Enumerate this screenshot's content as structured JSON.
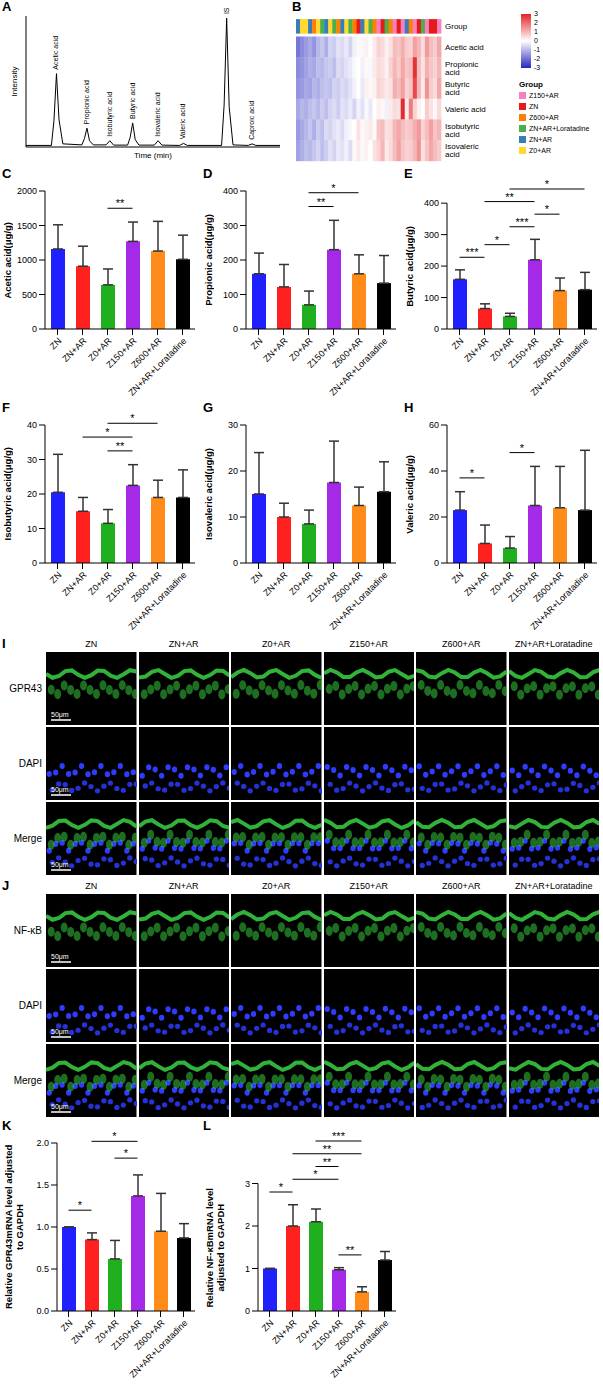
{
  "chart_data": [
    {
      "panel": "A",
      "type": "line",
      "xlabel": "Time (min)",
      "ylabel": "Intensity",
      "x": [
        0,
        1.0,
        1.1,
        1.2,
        1.3,
        1.45,
        2.2,
        2.3,
        2.4,
        2.5,
        2.65,
        3.15,
        3.3,
        3.45,
        4.0,
        4.1,
        4.2,
        4.3,
        4.45,
        5.05,
        5.2,
        5.35,
        6.05,
        6.2,
        6.35,
        7.7,
        7.8,
        7.9,
        8.0,
        8.15,
        8.75,
        8.9,
        9.05,
        10
      ],
      "values": [
        15000,
        15000,
        250000,
        700000,
        260000,
        30000,
        20000,
        80000,
        180000,
        60000,
        20000,
        20000,
        60000,
        18000,
        18000,
        90000,
        230000,
        70000,
        18000,
        18000,
        60000,
        18000,
        15000,
        35000,
        15000,
        15000,
        400000,
        1230000,
        380000,
        20000,
        15000,
        30000,
        15000,
        15000
      ],
      "color": "#000000",
      "xlim": [
        0,
        10
      ],
      "xticks": [
        0,
        2,
        4,
        6,
        8,
        10
      ],
      "ylim": [
        0,
        1250000
      ],
      "yticks": [
        0,
        250000,
        500000,
        750000,
        1000000,
        1250000
      ],
      "tick_labels": false,
      "annotations": [
        {
          "text": "Acetic acid",
          "x": 1.2,
          "y": 700000
        },
        {
          "text": "Propionic acid",
          "x": 2.4,
          "y": 180000
        },
        {
          "text": "Isobutyric acid",
          "x": 3.3,
          "y": 60000
        },
        {
          "text": "Butyric acid",
          "x": 4.2,
          "y": 230000
        },
        {
          "text": "Isovaleric acid",
          "x": 5.2,
          "y": 60000
        },
        {
          "text": "Valeric acid",
          "x": 6.2,
          "y": 35000
        },
        {
          "text": "IS",
          "x": 7.9,
          "y": 1230000
        },
        {
          "text": "Caproic acid",
          "x": 8.9,
          "y": 30000
        }
      ]
    },
    {
      "panel": "B",
      "type": "heatmap",
      "legend": "right",
      "rows": [
        "Acetic acid",
        "Propionic acid",
        "Butyric acid",
        "Valeric acid",
        "Isobutyric acid",
        "Isovaleric acid"
      ],
      "column_groups": [
        "ZN+AR",
        "Z0+AR",
        "Z0+AR",
        "ZN+AR",
        "Z600+AR",
        "Z0+AR",
        "ZN+AR+Loratadine",
        "ZN+AR",
        "Z0+AR",
        "ZN+AR+Loratadine",
        "Z600+AR",
        "ZN+AR",
        "Z0+AR",
        "ZN+AR+Loratadine",
        "Z600+AR",
        "ZN",
        "ZN+AR",
        "Z0+AR",
        "ZN+AR+Loratadine",
        "Z600+AR",
        "Z150+AR",
        "ZN",
        "ZN+AR+Loratadine",
        "Z600+AR",
        "Z150+AR",
        "ZN",
        "Z150+AR",
        "ZN+AR",
        "Z600+AR",
        "Z150+AR",
        "ZN",
        "ZN+AR+Loratadine",
        "Z150+AR",
        "ZN",
        "ZN",
        "Z150+AR"
      ],
      "cells": [
        [
          -1.9,
          -1.6,
          -1.4,
          -1.2,
          -1.5,
          -1.0,
          -0.8,
          -1.1,
          -0.6,
          -0.7,
          -0.4,
          -0.5,
          -0.3,
          -0.6,
          -0.2,
          0.1,
          -0.1,
          0.2,
          0.0,
          0.3,
          0.6,
          0.5,
          0.2,
          0.4,
          0.9,
          0.8,
          1.1,
          0.7,
          0.6,
          1.3,
          1.0,
          0.5,
          1.4,
          0.9,
          0.7,
          1.2
        ],
        [
          -1.6,
          -1.5,
          -1.3,
          -1.1,
          -1.2,
          -0.9,
          -1.0,
          -0.8,
          -0.7,
          -0.9,
          -0.5,
          -0.6,
          -0.4,
          -0.3,
          -0.1,
          0.0,
          -0.2,
          0.1,
          -0.1,
          0.3,
          0.5,
          0.4,
          0.2,
          0.6,
          1.0,
          0.7,
          1.2,
          0.8,
          0.9,
          2.8,
          0.9,
          0.4,
          1.1,
          0.8,
          0.6,
          1.0
        ],
        [
          -1.5,
          -1.4,
          -1.2,
          -1.3,
          -1.0,
          -1.1,
          -0.9,
          -0.8,
          -0.9,
          -0.6,
          -0.7,
          -0.5,
          -0.6,
          -0.4,
          -0.2,
          0.0,
          -0.3,
          0.2,
          0.1,
          0.2,
          0.6,
          0.5,
          0.3,
          0.4,
          1.1,
          0.9,
          1.3,
          0.6,
          0.8,
          2.5,
          1.0,
          0.3,
          1.5,
          0.7,
          0.5,
          1.2
        ],
        [
          -1.2,
          -1.0,
          -1.1,
          -0.9,
          -0.8,
          -1.0,
          -0.7,
          -0.9,
          -0.6,
          -0.5,
          -0.7,
          -0.4,
          -0.5,
          -0.3,
          -0.6,
          -0.2,
          -0.4,
          -0.1,
          -0.3,
          0.0,
          0.2,
          0.1,
          -0.2,
          0.3,
          0.5,
          0.4,
          2.9,
          0.3,
          1.8,
          0.6,
          0.2,
          0.0,
          0.7,
          0.4,
          0.1,
          0.5
        ],
        [
          -1.4,
          -1.2,
          -1.0,
          -0.8,
          -1.1,
          -0.7,
          -0.9,
          -0.5,
          -0.6,
          -0.4,
          -0.3,
          -0.5,
          -0.2,
          -0.1,
          0.0,
          0.4,
          0.1,
          0.2,
          0.3,
          0.1,
          0.8,
          0.9,
          0.4,
          0.5,
          1.0,
          1.2,
          0.9,
          0.7,
          0.8,
          1.1,
          1.4,
          0.6,
          0.9,
          1.3,
          0.8,
          1.0
        ],
        [
          -1.3,
          -1.1,
          -0.9,
          -1.0,
          -0.8,
          -0.6,
          -0.9,
          -0.7,
          -0.4,
          -0.6,
          -0.3,
          -0.4,
          -0.2,
          -0.5,
          0.1,
          0.3,
          -0.1,
          0.2,
          0.0,
          0.4,
          0.6,
          1.0,
          0.3,
          0.5,
          0.9,
          1.3,
          0.8,
          0.6,
          0.7,
          1.0,
          1.5,
          0.4,
          0.8,
          1.2,
          0.9,
          0.7
        ]
      ],
      "color_range": [
        -3,
        3
      ],
      "color_ticks": [
        3,
        2,
        1,
        0,
        -1,
        -2,
        -3
      ],
      "legend_title": "Group",
      "groups": [
        {
          "name": "Z150+AR",
          "color": "#F781BF"
        },
        {
          "name": "ZN",
          "color": "#E41A1C"
        },
        {
          "name": "Z600+AR",
          "color": "#FF7F00"
        },
        {
          "name": "ZN+AR+Loratadine",
          "color": "#4DAF4A"
        },
        {
          "name": "ZN+AR",
          "color": "#377EB8"
        },
        {
          "name": "Z0+AR",
          "color": "#FFD92F"
        }
      ]
    },
    {
      "panel": "C",
      "type": "bar",
      "ylabel": "Acetic acid(μg/g)",
      "categories": [
        "ZN",
        "ZN+AR",
        "Z0+AR",
        "Z150+AR",
        "Z600+AR",
        "ZN+AR+Loratadine"
      ],
      "values": [
        1160,
        910,
        640,
        1270,
        1130,
        1010
      ],
      "errors": [
        350,
        290,
        230,
        280,
        430,
        350
      ],
      "colors": [
        "#2020FF",
        "#FF2020",
        "#1FAF1F",
        "#A52AE8",
        "#FF8C1A",
        "#000000"
      ],
      "ylim": [
        0,
        2000
      ],
      "yticks": [
        0,
        500,
        1000,
        1500,
        2000
      ],
      "significance": [
        {
          "from": "Z0+AR",
          "to": "Z150+AR",
          "label": "**"
        }
      ]
    },
    {
      "panel": "D",
      "type": "bar",
      "ylabel": "Propionic acid(μg/g)",
      "categories": [
        "ZN",
        "ZN+AR",
        "Z0+AR",
        "Z150+AR",
        "Z600+AR",
        "ZN+AR+Loratadine"
      ],
      "values": [
        160,
        122,
        70,
        230,
        160,
        133
      ],
      "errors": [
        60,
        65,
        40,
        85,
        55,
        80
      ],
      "colors": [
        "#2020FF",
        "#FF2020",
        "#1FAF1F",
        "#A52AE8",
        "#FF8C1A",
        "#000000"
      ],
      "ylim": [
        0,
        400
      ],
      "yticks": [
        0,
        100,
        200,
        300,
        400
      ],
      "significance": [
        {
          "from": "Z0+AR",
          "to": "Z150+AR",
          "label": "**"
        },
        {
          "from": "Z0+AR",
          "to": "Z600+AR",
          "label": "*"
        }
      ]
    },
    {
      "panel": "E",
      "type": "bar",
      "ylabel": "Butyric acid(μg/g)",
      "categories": [
        "ZN",
        "ZN+AR",
        "Z0+AR",
        "Z150+AR",
        "Z600+AR",
        "ZN+AR+Loratadine"
      ],
      "values": [
        158,
        65,
        40,
        220,
        122,
        125
      ],
      "errors": [
        30,
        15,
        10,
        65,
        40,
        55
      ],
      "colors": [
        "#2020FF",
        "#FF2020",
        "#1FAF1F",
        "#A52AE8",
        "#FF8C1A",
        "#000000"
      ],
      "ylim": [
        0,
        400
      ],
      "yticks": [
        0,
        100,
        200,
        300,
        400
      ],
      "significance": [
        {
          "from": "ZN",
          "to": "ZN+AR",
          "label": "***"
        },
        {
          "from": "ZN+AR",
          "to": "Z0+AR",
          "label": "*"
        },
        {
          "from": "Z0+AR",
          "to": "Z150+AR",
          "label": "***"
        },
        {
          "from": "Z150+AR",
          "to": "Z600+AR",
          "label": "*"
        },
        {
          "from": "ZN+AR",
          "to": "Z150+AR",
          "label": "**"
        },
        {
          "from": "Z0+AR",
          "to": "ZN+AR+Loratadine",
          "label": "*"
        }
      ]
    },
    {
      "panel": "F",
      "type": "bar",
      "ylabel": "Isobutyric acid(μg/g)",
      "categories": [
        "ZN",
        "ZN+AR",
        "Z0+AR",
        "Z150+AR",
        "Z600+AR",
        "ZN+AR+Loratadine"
      ],
      "values": [
        20.5,
        15,
        11.5,
        22.5,
        19,
        19
      ],
      "errors": [
        11,
        4,
        4,
        6,
        5,
        8
      ],
      "colors": [
        "#2020FF",
        "#FF2020",
        "#1FAF1F",
        "#A52AE8",
        "#FF8C1A",
        "#000000"
      ],
      "ylim": [
        0,
        40
      ],
      "yticks": [
        0,
        10,
        20,
        30,
        40
      ],
      "significance": [
        {
          "from": "Z0+AR",
          "to": "Z150+AR",
          "label": "**"
        },
        {
          "from": "ZN+AR",
          "to": "Z150+AR",
          "label": "*"
        },
        {
          "from": "Z0+AR",
          "to": "Z600+AR",
          "label": "*"
        }
      ]
    },
    {
      "panel": "G",
      "type": "bar",
      "ylabel": "Isovaleric acid(μg/g)",
      "categories": [
        "ZN",
        "ZN+AR",
        "Z0+AR",
        "Z150+AR",
        "Z600+AR",
        "ZN+AR+Loratadine"
      ],
      "values": [
        15,
        10,
        8.5,
        17.5,
        12.5,
        15.5
      ],
      "errors": [
        9,
        3,
        3,
        9,
        4,
        6.5
      ],
      "colors": [
        "#2020FF",
        "#FF2020",
        "#1FAF1F",
        "#A52AE8",
        "#FF8C1A",
        "#000000"
      ],
      "ylim": [
        0,
        30
      ],
      "yticks": [
        0,
        10,
        20,
        30
      ],
      "significance": []
    },
    {
      "panel": "H",
      "type": "bar",
      "ylabel": "Valeric acid(μg/g)",
      "categories": [
        "ZN",
        "ZN+AR",
        "Z0+AR",
        "Z150+AR",
        "Z600+AR",
        "ZN+AR+Loratadine"
      ],
      "values": [
        23,
        8.5,
        6.5,
        25,
        24,
        23
      ],
      "errors": [
        8,
        8,
        5,
        17,
        18,
        26
      ],
      "colors": [
        "#2020FF",
        "#FF2020",
        "#1FAF1F",
        "#A52AE8",
        "#FF8C1A",
        "#000000"
      ],
      "ylim": [
        0,
        60
      ],
      "yticks": [
        0,
        20,
        40,
        60
      ],
      "significance": [
        {
          "from": "ZN",
          "to": "ZN+AR",
          "label": "*"
        },
        {
          "from": "Z0+AR",
          "to": "Z150+AR",
          "label": "*"
        }
      ]
    },
    {
      "panel": "K",
      "type": "bar",
      "ylabel": "Relative GPR43mRNA level adjusted to GAPDH",
      "categories": [
        "ZN",
        "ZN+AR",
        "Z0+AR",
        "Z150+AR",
        "Z600+AR",
        "ZN+AR+Loratadine"
      ],
      "values": [
        1.0,
        0.85,
        0.62,
        1.37,
        0.95,
        0.87
      ],
      "errors": [
        0,
        0.08,
        0.22,
        0.25,
        0.45,
        0.17
      ],
      "colors": [
        "#2020FF",
        "#FF2020",
        "#1FAF1F",
        "#A52AE8",
        "#FF8C1A",
        "#000000"
      ],
      "ylim": [
        0,
        2
      ],
      "yticks": [
        {
          "value": 0,
          "label": "0.0"
        },
        {
          "value": 0.5,
          "label": "0.5"
        },
        {
          "value": 1,
          "label": "1.0"
        },
        {
          "value": 1.5,
          "label": "1.5"
        },
        {
          "value": 2,
          "label": "2.0"
        }
      ],
      "significance": [
        {
          "from": "ZN",
          "to": "ZN+AR",
          "label": "*"
        },
        {
          "from": "Z0+AR",
          "to": "Z150+AR",
          "label": "*"
        },
        {
          "from": "ZN+AR",
          "to": "Z150+AR",
          "label": "*"
        }
      ]
    },
    {
      "panel": "L",
      "type": "bar",
      "ylabel": "Relative NF-κBmRNA level adjusted to GAPDH",
      "categories": [
        "ZN",
        "ZN+AR",
        "Z0+AR",
        "Z150+AR",
        "Z600+AR",
        "ZN+AR+Loratadine"
      ],
      "values": [
        1.0,
        2.0,
        2.1,
        0.97,
        0.45,
        1.2
      ],
      "errors": [
        0,
        0.5,
        0.3,
        0.05,
        0.12,
        0.2
      ],
      "colors": [
        "#2020FF",
        "#FF2020",
        "#1FAF1F",
        "#A52AE8",
        "#FF8C1A",
        "#000000"
      ],
      "ylim": [
        0,
        3
      ],
      "yticks": [
        0,
        1,
        2,
        3
      ],
      "significance": [
        {
          "from": "ZN",
          "to": "ZN+AR",
          "label": "*"
        },
        {
          "from": "Z150+AR",
          "to": "Z600+AR",
          "label": "**"
        },
        {
          "from": "ZN+AR",
          "to": "Z150+AR",
          "label": "*"
        },
        {
          "from": "Z0+AR",
          "to": "Z150+AR",
          "label": "**"
        },
        {
          "from": "ZN+AR",
          "to": "Z600+AR",
          "label": "**"
        },
        {
          "from": "Z0+AR",
          "to": "Z600+AR",
          "label": "***"
        }
      ]
    }
  ],
  "images": [
    {
      "panel": "I",
      "columns": [
        "ZN",
        "ZN+AR",
        "Z0+AR",
        "Z150+AR",
        "Z600+AR",
        "ZN+AR+Loratadine"
      ],
      "rows": [
        "GPR43",
        "DAPI",
        "Merge"
      ],
      "scale_bar": "50μm"
    },
    {
      "panel": "J",
      "columns": [
        "ZN",
        "ZN+AR",
        "Z0+AR",
        "Z150+AR",
        "Z600+AR",
        "ZN+AR+Loratadine"
      ],
      "rows": [
        "NF-κB",
        "DAPI",
        "Merge"
      ],
      "scale_bar": "50μm"
    }
  ]
}
